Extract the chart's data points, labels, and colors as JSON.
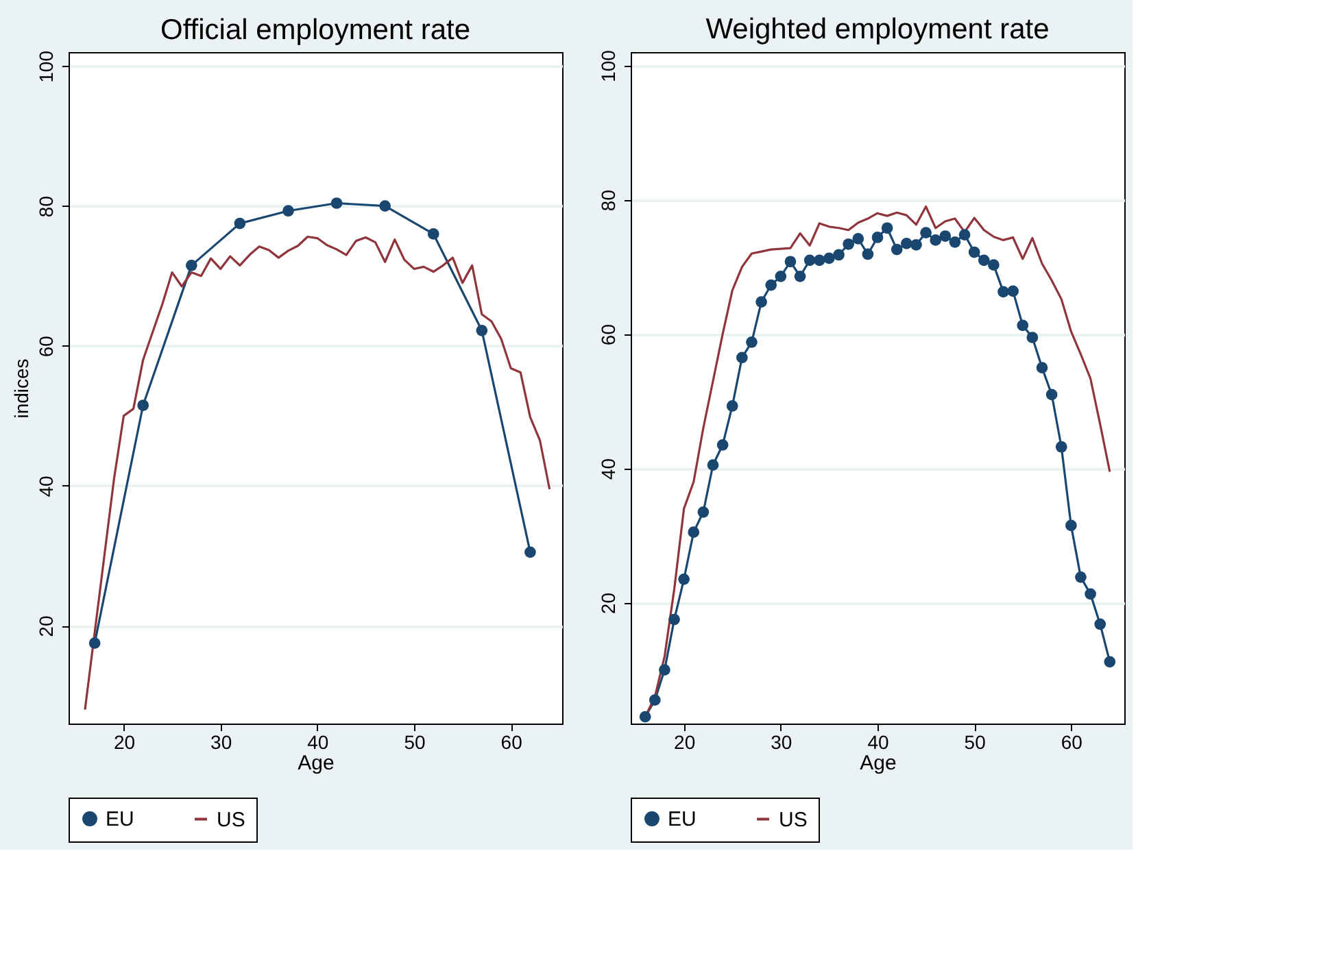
{
  "chart_data": [
    {
      "type": "line",
      "title": "Official employment rate",
      "xlabel": "Age",
      "ylabel": "indices",
      "xlim": [
        14.3,
        65.3
      ],
      "ylim": [
        6,
        102
      ],
      "xticks": [
        20,
        30,
        40,
        50,
        60
      ],
      "yticks": [
        20,
        40,
        60,
        80,
        100
      ],
      "grid": "y",
      "legend": "bottom",
      "series": [
        {
          "name": "EU",
          "color": "#1a476f",
          "marker": "circle",
          "x": [
            17,
            22,
            27,
            32,
            37,
            42,
            47,
            52,
            57,
            62
          ],
          "values": [
            17.5,
            51.5,
            71.5,
            77.5,
            79.3,
            80.4,
            80,
            76,
            62.2,
            30.5
          ]
        },
        {
          "name": "US",
          "color": "#90353b",
          "marker": "none",
          "x": [
            16,
            17,
            18,
            19,
            20,
            21,
            22,
            23,
            24,
            25,
            26,
            27,
            28,
            29,
            30,
            31,
            32,
            33,
            34,
            35,
            36,
            37,
            38,
            39,
            40,
            41,
            42,
            43,
            44,
            45,
            46,
            47,
            48,
            49,
            50,
            51,
            52,
            53,
            54,
            55,
            56,
            57,
            58,
            59,
            60,
            61,
            62,
            63,
            64
          ],
          "values": [
            8,
            19,
            30,
            41,
            50,
            51,
            58,
            62,
            66,
            70.5,
            68.5,
            70.5,
            70,
            72.5,
            71,
            72.8,
            71.5,
            73,
            74.2,
            73.7,
            72.6,
            73.6,
            74.3,
            75.6,
            75.4,
            74.4,
            73.8,
            73,
            75,
            75.5,
            74.8,
            72,
            75.2,
            72.3,
            71,
            71.3,
            70.6,
            71.5,
            72.6,
            69,
            71.5,
            64.5,
            63.5,
            61,
            56.8,
            56.2,
            49.8,
            46.5,
            39.5
          ]
        }
      ]
    },
    {
      "type": "line",
      "title": "Weighted employment rate",
      "xlabel": "Age",
      "xlim": [
        14.5,
        65.5
      ],
      "ylim": [
        2,
        102
      ],
      "xticks": [
        20,
        30,
        40,
        50,
        60
      ],
      "yticks": [
        20,
        40,
        60,
        80,
        100
      ],
      "grid": "y",
      "legend": "bottom",
      "series": [
        {
          "name": "EU",
          "color": "#1a476f",
          "marker": "circle",
          "x": [
            16,
            17,
            18,
            19,
            20,
            21,
            22,
            23,
            24,
            25,
            26,
            27,
            28,
            29,
            30,
            31,
            32,
            33,
            34,
            35,
            36,
            37,
            38,
            39,
            40,
            41,
            42,
            43,
            44,
            45,
            46,
            47,
            48,
            49,
            50,
            51,
            52,
            53,
            54,
            55,
            56,
            57,
            58,
            59,
            60,
            61,
            62,
            63,
            64
          ],
          "values": [
            3,
            5.5,
            10,
            17.5,
            23.5,
            30.5,
            33.5,
            40.5,
            43.5,
            49.3,
            56.5,
            58.8,
            64.8,
            67.3,
            68.6,
            70.8,
            68.6,
            71,
            71,
            71.3,
            71.8,
            73.4,
            74.2,
            71.9,
            74.4,
            75.8,
            72.6,
            73.5,
            73.3,
            75.1,
            74,
            74.6,
            73.7,
            74.8,
            72.2,
            71,
            70.3,
            66.3,
            66.4,
            61.3,
            59.5,
            55,
            51,
            43.2,
            31.5,
            23.8,
            21.3,
            16.8,
            11.2
          ]
        },
        {
          "name": "US",
          "color": "#90353b",
          "marker": "none",
          "x": [
            16,
            17,
            18,
            19,
            20,
            21,
            22,
            23,
            24,
            25,
            26,
            27,
            28,
            29,
            30,
            31,
            32,
            33,
            34,
            35,
            36,
            37,
            38,
            39,
            40,
            41,
            42,
            43,
            44,
            45,
            46,
            47,
            48,
            49,
            50,
            51,
            52,
            53,
            54,
            55,
            56,
            57,
            58,
            59,
            60,
            61,
            62,
            63,
            64
          ],
          "values": [
            3,
            6,
            12,
            22,
            34,
            38,
            46,
            53,
            60,
            66.5,
            70,
            72,
            72.3,
            72.6,
            72.7,
            72.8,
            75,
            73.2,
            76.5,
            76,
            75.8,
            75.5,
            76.6,
            77.2,
            78,
            77.6,
            78.1,
            77.7,
            76.3,
            79,
            75.8,
            76.8,
            77.2,
            75.2,
            77.3,
            75.5,
            74.5,
            74,
            74.4,
            71.2,
            74.3,
            70.5,
            68,
            65.2,
            60.4,
            57,
            53.4,
            46.6,
            39.5
          ]
        }
      ]
    }
  ]
}
